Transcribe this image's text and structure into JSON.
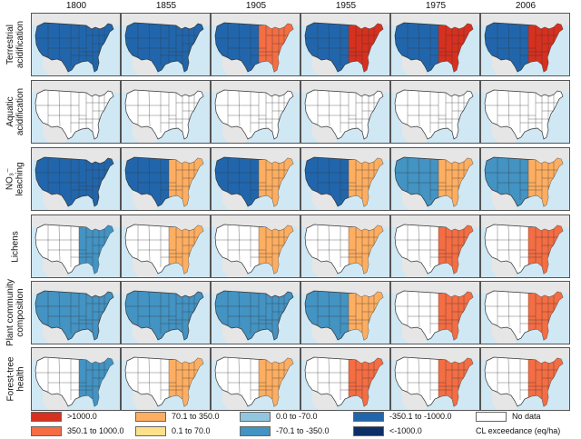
{
  "columns": [
    "1800",
    "1855",
    "1905",
    "1955",
    "1975",
    "2006"
  ],
  "rows": [
    {
      "label_lines": [
        "Terrestrial",
        "acidification"
      ]
    },
    {
      "label_lines": [
        "Aquatic",
        "acidification"
      ]
    },
    {
      "label_lines": [
        "NO₃⁻",
        "leaching"
      ]
    },
    {
      "label_lines": [
        "Lichens"
      ]
    },
    {
      "label_lines": [
        "Plant community",
        "composition"
      ]
    },
    {
      "label_lines": [
        "Forest-tree",
        "health"
      ]
    }
  ],
  "legend": {
    "items": [
      {
        "label": ">1000.0",
        "color": "#d7301f"
      },
      {
        "label": "350.1 to 1000.0",
        "color": "#f46d43"
      },
      {
        "label": "70.1 to 350.0",
        "color": "#fdae61"
      },
      {
        "label": "0.1 to 70.0",
        "color": "#fee08b"
      },
      {
        "label": "0.0 to -70.0",
        "color": "#92c5de"
      },
      {
        "label": "-70.1 to -350.0",
        "color": "#4393c3"
      },
      {
        "label": "-350.1 to -1000.0",
        "color": "#2166ac"
      },
      {
        "label": "<-1000.0",
        "color": "#0b2f66"
      },
      {
        "label": "No data",
        "color": "#ffffff"
      }
    ],
    "caption": "CL exceedance (eq/ha)"
  },
  "colors": {
    "ocean": "#cfe8f4",
    "land_outside": "#e6e6e6",
    "no_data": "#ffffff",
    "state_border": "#333333"
  },
  "panels": [
    [
      "#2166ac",
      "#2166ac",
      "#2166ac",
      "#2166ac",
      "#2166ac",
      "#2166ac"
    ],
    [
      "#ffffff",
      "#ffffff",
      "#ffffff",
      "#ffffff",
      "#ffffff",
      "#ffffff"
    ],
    [
      "#2166ac",
      "#2166ac",
      "#2166ac",
      "#2166ac",
      "#4393c3",
      "#4393c3"
    ],
    [
      "#ffffff",
      "#ffffff",
      "#ffffff",
      "#ffffff",
      "#ffffff",
      "#ffffff"
    ],
    [
      "#4393c3",
      "#4393c3",
      "#4393c3",
      "#4393c3",
      "#ffffff",
      "#ffffff"
    ],
    [
      "#ffffff",
      "#ffffff",
      "#ffffff",
      "#ffffff",
      "#ffffff",
      "#ffffff"
    ]
  ],
  "east_overlay": [
    [
      null,
      null,
      "#f46d43",
      "#d7301f",
      "#d7301f",
      "#d7301f"
    ],
    [
      null,
      null,
      null,
      null,
      null,
      null
    ],
    [
      null,
      "#fdae61",
      "#fdae61",
      "#fdae61",
      "#fdae61",
      "#fdae61"
    ],
    [
      "#4393c3",
      "#fdae61",
      "#fdae61",
      "#fdae61",
      "#f46d43",
      "#f46d43"
    ],
    [
      null,
      null,
      null,
      "#fdae61",
      "#f46d43",
      "#f46d43"
    ],
    [
      "#4393c3",
      "#fdae61",
      "#fdae61",
      "#f46d43",
      "#f46d43",
      "#f46d43"
    ]
  ]
}
